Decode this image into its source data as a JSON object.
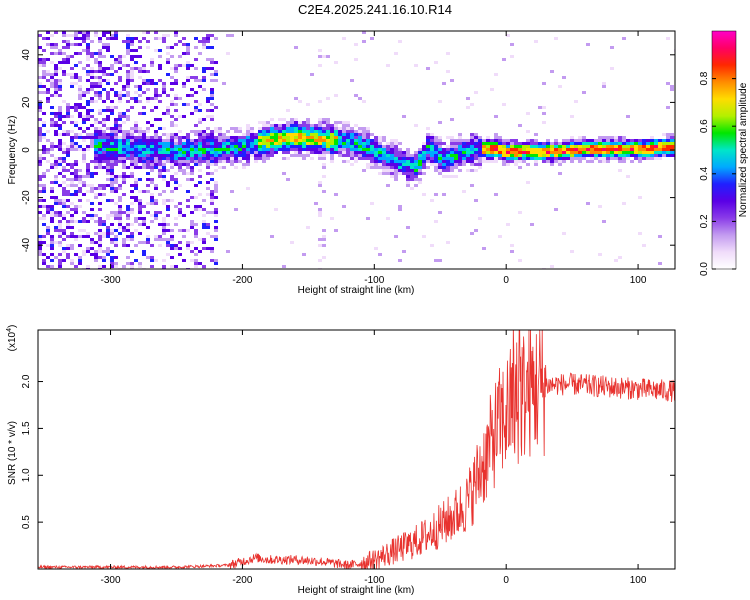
{
  "title": "C2E4.2025.241.16.10.R14",
  "colors": {
    "line": "#e8322e",
    "axis": "#000000",
    "colormap": [
      "#ffffff",
      "#f0dcfa",
      "#c39bf0",
      "#8a3ce8",
      "#5a00e6",
      "#2020ff",
      "#00aaff",
      "#00e6c8",
      "#00e600",
      "#b4f000",
      "#ffdc00",
      "#ff8c00",
      "#ff2800",
      "#ff0064",
      "#ff00c8"
    ]
  },
  "chart_data": [
    {
      "type": "heatmap",
      "id": "spectrogram",
      "title": "C2E4.2025.241.16.10.R14",
      "xlabel": "Height of straight line (km)",
      "ylabel": "Frequency (Hz)",
      "xlim": [
        -355,
        128
      ],
      "ylim": [
        -50,
        50
      ],
      "xticks": [
        -300,
        -200,
        -100,
        0,
        100
      ],
      "xtick_labels": [
        "-300",
        "-200",
        "-100",
        "0",
        "100"
      ],
      "yticks": [
        -40,
        -20,
        0,
        20,
        40
      ],
      "ytick_labels": [
        "-40",
        "-20",
        "0",
        "20",
        "40"
      ],
      "signal_ridge": {
        "x": [
          -310,
          -280,
          -250,
          -220,
          -200,
          -180,
          -160,
          -140,
          -120,
          -100,
          -90,
          -80,
          -70,
          -60,
          -50,
          -40,
          -30,
          -20,
          -10,
          0,
          20,
          40,
          60,
          80,
          100,
          128
        ],
        "frequency": [
          2,
          1,
          0,
          1,
          2,
          5,
          6,
          5,
          4,
          0,
          -3,
          -5,
          -7,
          2,
          -3,
          -2,
          0,
          1,
          1,
          0,
          0,
          0,
          1,
          1,
          1,
          2
        ]
      },
      "colorbar": {
        "label": "Normalized spectral amplitude",
        "range": [
          0,
          1
        ],
        "ticks": [
          0.0,
          0.2,
          0.4,
          0.6,
          0.8
        ],
        "tick_labels": [
          "0.0",
          "0.2",
          "0.4",
          "0.6",
          "0.8"
        ]
      }
    },
    {
      "type": "line",
      "id": "snr",
      "xlabel": "Height of straight line (km)",
      "ylabel": "SNR (10 * v/v)",
      "multiplier_label": "(x10",
      "multiplier_exp": "4",
      "multiplier_close": ")",
      "xlim": [
        -355,
        128
      ],
      "ylim": [
        0,
        2.55
      ],
      "xticks": [
        -300,
        -200,
        -100,
        0,
        100
      ],
      "xtick_labels": [
        "-300",
        "-200",
        "-100",
        "0",
        "100"
      ],
      "yticks": [
        0.5,
        1.0,
        1.5,
        2.0
      ],
      "ytick_labels": [
        "0.5",
        "1.0",
        "1.5",
        "2.0"
      ],
      "series": [
        {
          "name": "SNR",
          "x": [
            -355,
            -300,
            -250,
            -210,
            -200,
            -190,
            -180,
            -160,
            -140,
            -120,
            -110,
            -100,
            -90,
            -80,
            -70,
            -60,
            -50,
            -40,
            -30,
            -25,
            -20,
            -15,
            -10,
            -5,
            0,
            5,
            10,
            15,
            20,
            25,
            30,
            40,
            50,
            60,
            70,
            80,
            90,
            100,
            110,
            128
          ],
          "values": [
            0.02,
            0.02,
            0.02,
            0.04,
            0.08,
            0.12,
            0.1,
            0.1,
            0.08,
            0.04,
            0.06,
            0.1,
            0.16,
            0.22,
            0.28,
            0.36,
            0.46,
            0.56,
            0.7,
            0.85,
            1.05,
            1.2,
            1.4,
            1.55,
            1.65,
            1.75,
            1.82,
            1.88,
            1.92,
            1.94,
            1.96,
            1.97,
            1.97,
            1.96,
            1.95,
            1.94,
            1.93,
            1.92,
            1.91,
            1.9
          ]
        }
      ]
    }
  ]
}
